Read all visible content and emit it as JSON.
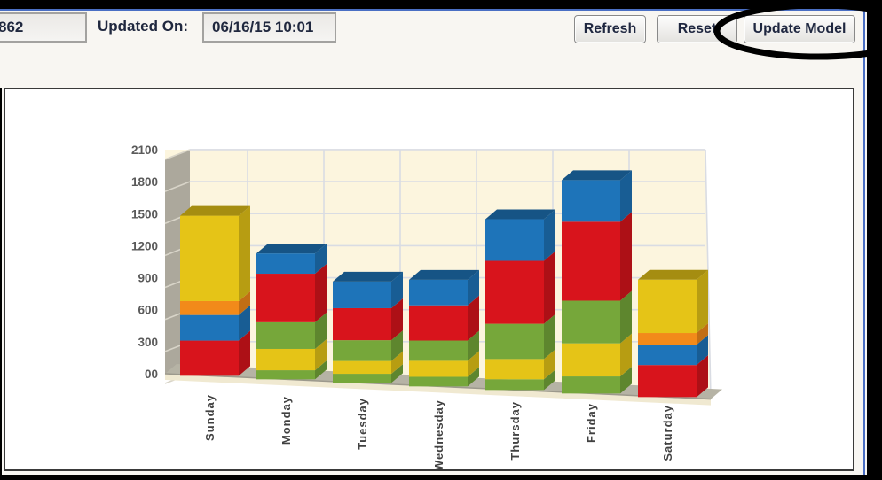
{
  "window": {
    "frame_color": "#000000",
    "accent_color": "#4a6fc4",
    "toolbar_bg": "#f8f6f2"
  },
  "toolbar": {
    "record_field_value": "862",
    "updated_on_label": "Updated On:",
    "updated_on_value": "06/16/15 10:01",
    "refresh_button": "Refresh",
    "reset_button": "Reset",
    "update_model_button": "Update Model"
  },
  "annotation": {
    "type": "ellipse-highlight",
    "around": "update-model-button",
    "stroke": "#000000"
  },
  "chart_data": {
    "type": "bar",
    "subtype": "3d-stacked-column",
    "title": "",
    "xlabel": "",
    "ylabel": "",
    "legend": false,
    "grid": true,
    "plot_bg": "#fcf5de",
    "wall_color": "#aca89c",
    "floor_color": "#b6b3a5",
    "floor_front_color": "#f0e9d1",
    "gridline_color": "#d9dce3",
    "categories": [
      "Sunday",
      "Monday",
      "Tuesday",
      "Wednesday",
      "Thursday",
      "Friday",
      "Saturday"
    ],
    "y_axis": {
      "min": 0,
      "max": 2100,
      "tick_step": 300,
      "tick_labels": [
        "00",
        "300",
        "600",
        "900",
        "1200",
        "1500",
        "1800",
        "2100"
      ]
    },
    "palette": {
      "red": "#d8141c",
      "blue": "#1e74b9",
      "orange": "#f28a1a",
      "yellow": "#e5c417",
      "green": "#76a73a"
    },
    "bars": [
      {
        "category": "Sunday",
        "segments": [
          {
            "color": "red",
            "value": 330
          },
          {
            "color": "blue",
            "value": 240
          },
          {
            "color": "orange",
            "value": 130
          },
          {
            "color": "yellow",
            "value": 800
          }
        ]
      },
      {
        "category": "Monday",
        "segments": [
          {
            "color": "green",
            "value": 85
          },
          {
            "color": "yellow",
            "value": 200
          },
          {
            "color": "green",
            "value": 250
          },
          {
            "color": "red",
            "value": 455
          },
          {
            "color": "blue",
            "value": 190
          }
        ]
      },
      {
        "category": "Tuesday",
        "segments": [
          {
            "color": "green",
            "value": 85
          },
          {
            "color": "yellow",
            "value": 120
          },
          {
            "color": "green",
            "value": 195
          },
          {
            "color": "red",
            "value": 300
          },
          {
            "color": "blue",
            "value": 250
          }
        ]
      },
      {
        "category": "Wednesday",
        "segments": [
          {
            "color": "green",
            "value": 90
          },
          {
            "color": "yellow",
            "value": 150
          },
          {
            "color": "green",
            "value": 190
          },
          {
            "color": "red",
            "value": 330
          },
          {
            "color": "blue",
            "value": 240
          }
        ]
      },
      {
        "category": "Thursday",
        "segments": [
          {
            "color": "green",
            "value": 100
          },
          {
            "color": "yellow",
            "value": 190
          },
          {
            "color": "green",
            "value": 330
          },
          {
            "color": "red",
            "value": 590
          },
          {
            "color": "blue",
            "value": 390
          }
        ]
      },
      {
        "category": "Friday",
        "segments": [
          {
            "color": "green",
            "value": 160
          },
          {
            "color": "yellow",
            "value": 310
          },
          {
            "color": "green",
            "value": 400
          },
          {
            "color": "red",
            "value": 740
          },
          {
            "color": "blue",
            "value": 390
          }
        ]
      },
      {
        "category": "Saturday",
        "segments": [
          {
            "color": "red",
            "value": 300
          },
          {
            "color": "blue",
            "value": 190
          },
          {
            "color": "orange",
            "value": 110
          },
          {
            "color": "yellow",
            "value": 500
          }
        ]
      }
    ]
  }
}
